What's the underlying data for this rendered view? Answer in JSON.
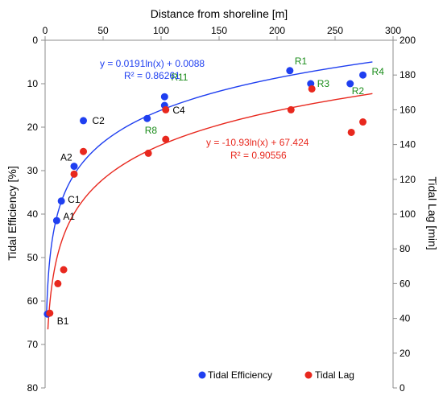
{
  "chart_data": {
    "type": "scatter",
    "title": "",
    "x_axis": {
      "label": "Distance from shoreline [m]",
      "range": [
        0,
        300
      ],
      "ticks": [
        0,
        50,
        100,
        150,
        200,
        250,
        300
      ],
      "position": "top"
    },
    "y_axis_left": {
      "label": "Tidal Efficiency [%]",
      "range": [
        0,
        80
      ],
      "ticks": [
        0,
        10,
        20,
        30,
        40,
        50,
        60,
        70,
        80
      ],
      "inverted": true
    },
    "y_axis_right": {
      "label": "Tidal Lag [min]",
      "range": [
        0,
        200
      ],
      "ticks": [
        0,
        20,
        40,
        60,
        80,
        100,
        120,
        140,
        160,
        180,
        200
      ]
    },
    "grid": false,
    "legend_placement": "bottom",
    "series": [
      {
        "name": "Tidal Efficiency",
        "axis": "left",
        "color": "#1f3ff0",
        "points": [
          {
            "x": 2,
            "y": 63
          },
          {
            "x": 10,
            "y": 41.5
          },
          {
            "x": 14,
            "y": 37
          },
          {
            "x": 25,
            "y": 29
          },
          {
            "x": 33,
            "y": 18.5
          },
          {
            "x": 88,
            "y": 18
          },
          {
            "x": 103,
            "y": 15
          },
          {
            "x": 103,
            "y": 13
          },
          {
            "x": 211,
            "y": 7
          },
          {
            "x": 229,
            "y": 10
          },
          {
            "x": 263,
            "y": 10
          },
          {
            "x": 274,
            "y": 8
          }
        ],
        "trendline": {
          "equation": "y = 0.0191ln(x) + 0.0088",
          "r2": "R² = 0.86261"
        }
      },
      {
        "name": "Tidal Lag",
        "axis": "right",
        "color": "#e8281e",
        "points": [
          {
            "x": 4,
            "y": 43
          },
          {
            "x": 11,
            "y": 60
          },
          {
            "x": 16,
            "y": 68
          },
          {
            "x": 25,
            "y": 123
          },
          {
            "x": 33,
            "y": 136
          },
          {
            "x": 89,
            "y": 135
          },
          {
            "x": 104,
            "y": 143
          },
          {
            "x": 104,
            "y": 160
          },
          {
            "x": 212,
            "y": 160
          },
          {
            "x": 230,
            "y": 172
          },
          {
            "x": 264,
            "y": 147
          },
          {
            "x": 274,
            "y": 153
          }
        ],
        "trendline": {
          "equation": "y = -10.93ln(x) + 67.424",
          "r2": "R² = 0.90556"
        }
      }
    ],
    "point_labels": [
      {
        "text": "B1",
        "color": "#000000",
        "x": 4,
        "y_left": 63
      },
      {
        "text": "A1",
        "color": "#000000",
        "x": 10,
        "y_left": 41.5
      },
      {
        "text": "C1",
        "color": "#000000",
        "x": 14,
        "y_left": 37
      },
      {
        "text": "A2",
        "color": "#000000",
        "x": 25,
        "y_left": 29
      },
      {
        "text": "C2",
        "color": "#000000",
        "x": 33,
        "y_left": 18.5
      },
      {
        "text": "R8",
        "color": "#1a8c1a",
        "x": 88,
        "y_left": 18
      },
      {
        "text": "C4",
        "color": "#000000",
        "x": 103,
        "y_left": 15
      },
      {
        "text": "R11",
        "color": "#1a8c1a",
        "x": 103,
        "y_left": 13
      },
      {
        "text": "R1",
        "color": "#1a8c1a",
        "x": 211,
        "y_left": 7
      },
      {
        "text": "R3",
        "color": "#1a8c1a",
        "x": 229,
        "y_left": 10
      },
      {
        "text": "R2",
        "color": "#1a8c1a",
        "x": 263,
        "y_left": 10
      },
      {
        "text": "R4",
        "color": "#1a8c1a",
        "x": 274,
        "y_left": 8
      }
    ]
  }
}
